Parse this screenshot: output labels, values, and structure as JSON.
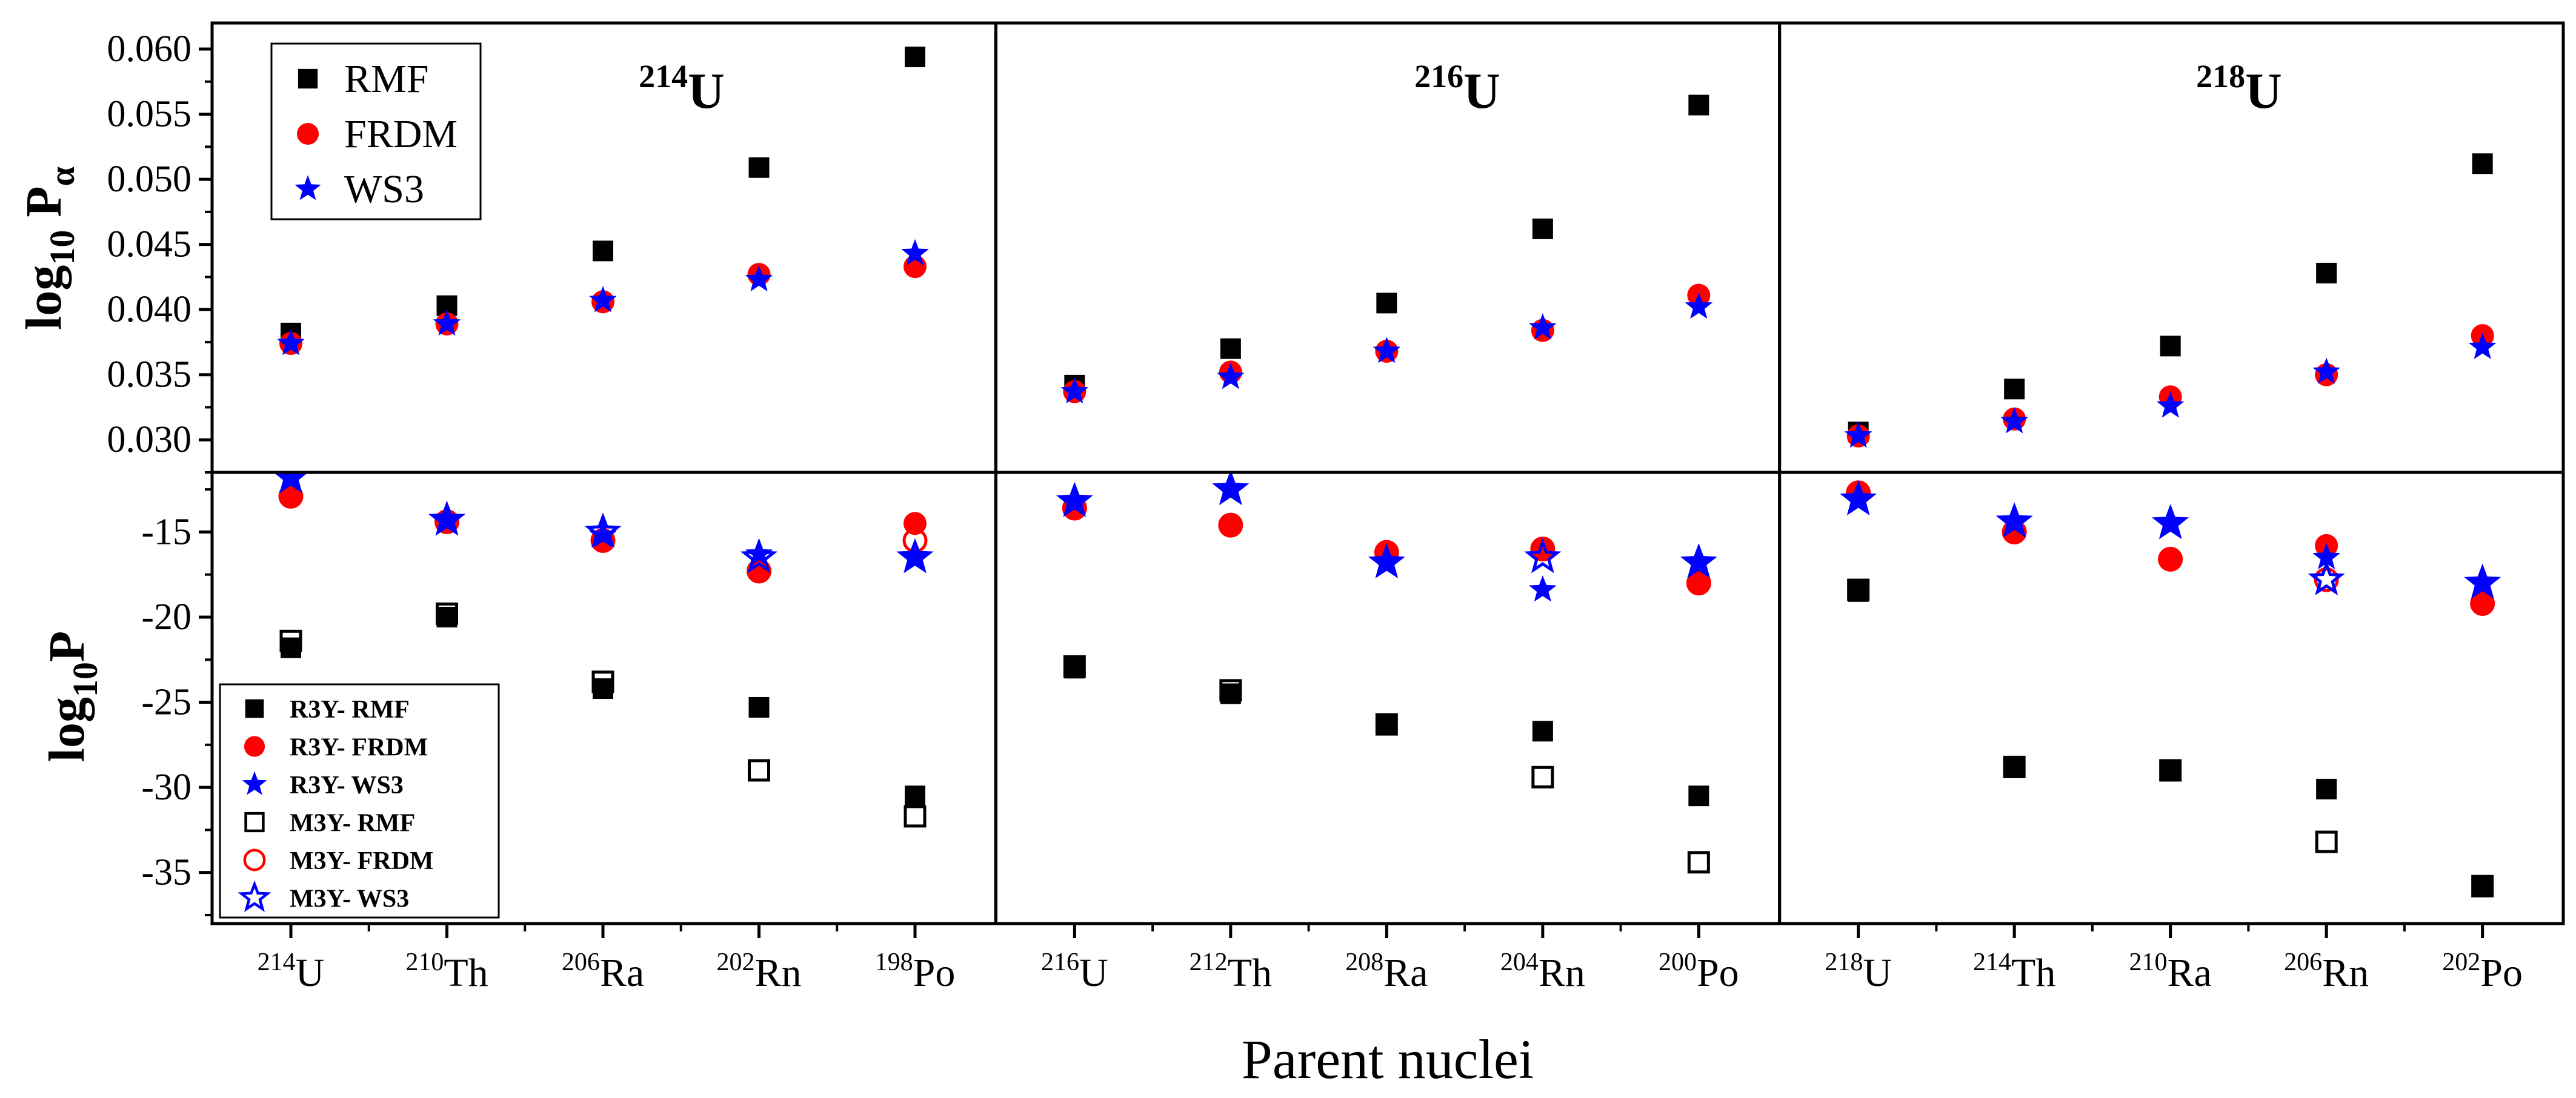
{
  "chart_data": {
    "type": "scatter",
    "x_title": "Parent nuclei",
    "top_ylabel": {
      "base": "log",
      "sub": "10",
      "main": " P",
      "sub2": "α"
    },
    "bottom_ylabel": {
      "base": "log",
      "sub": "10",
      "main": "P"
    },
    "top_yaxis": {
      "min": 0.0275,
      "max": 0.062,
      "ticks": [
        "0.030",
        "0.035",
        "0.040",
        "0.045",
        "0.050",
        "0.055",
        "0.060"
      ]
    },
    "bottom_yaxis": {
      "min": -38,
      "max": -11.5,
      "ticks": [
        "-15",
        "-20",
        "-25",
        "-30",
        "-35"
      ]
    },
    "panels": [
      {
        "title_mass": "214",
        "title_elem": "U",
        "xticks": [
          {
            "mass": "214",
            "elem": "U"
          },
          {
            "mass": "210",
            "elem": "Th"
          },
          {
            "mass": "206",
            "elem": "Ra"
          },
          {
            "mass": "202",
            "elem": "Rn"
          },
          {
            "mass": "198",
            "elem": "Po"
          }
        ],
        "top": {
          "RMF": [
            0.0382,
            0.0403,
            0.0445,
            0.0509,
            0.0594
          ],
          "FRDM": [
            0.0374,
            0.0389,
            0.0406,
            0.0427,
            0.0433
          ],
          "WS3": [
            0.0374,
            0.0389,
            0.0407,
            0.0423,
            0.0443
          ]
        },
        "bottom": {
          "R3Y_RMF": [
            -21.8,
            -20.0,
            -24.2,
            -25.3,
            -30.5
          ],
          "R3Y_FRDM": [
            -12.9,
            -14.4,
            -15.5,
            -17.3,
            -14.5
          ],
          "R3Y_WS3": [
            -11.8,
            -14.3,
            -15.2,
            -16.3,
            -16.5
          ],
          "M3Y_RMF": [
            -21.4,
            -19.8,
            -23.8,
            -29.0,
            -31.7
          ],
          "M3Y_FRDM": [
            -12.9,
            -14.4,
            -15.5,
            -17.3,
            -15.5
          ],
          "M3Y_WS3": [
            -11.8,
            -14.3,
            -15.0,
            -16.5,
            -16.5
          ]
        }
      },
      {
        "title_mass": "216",
        "title_elem": "U",
        "xticks": [
          {
            "mass": "216",
            "elem": "U"
          },
          {
            "mass": "212",
            "elem": "Th"
          },
          {
            "mass": "208",
            "elem": "Ra"
          },
          {
            "mass": "204",
            "elem": "Rn"
          },
          {
            "mass": "200",
            "elem": "Po"
          }
        ],
        "top": {
          "RMF": [
            0.0342,
            0.037,
            0.0405,
            0.0462,
            0.0557
          ],
          "FRDM": [
            0.0337,
            0.0352,
            0.0368,
            0.0384,
            0.0411
          ],
          "WS3": [
            0.0337,
            0.0348,
            0.0368,
            0.0386,
            0.0402
          ]
        },
        "bottom": {
          "R3Y_RMF": [
            -23.0,
            -24.5,
            -26.3,
            -26.7,
            -30.5
          ],
          "R3Y_FRDM": [
            -13.6,
            -14.6,
            -16.2,
            -16.0,
            -18.0
          ],
          "R3Y_WS3": [
            -13.2,
            -12.5,
            -16.8,
            -18.4,
            -16.8
          ],
          "M3Y_RMF": [
            -22.9,
            -24.3,
            -26.3,
            -29.4,
            -34.4
          ],
          "M3Y_FRDM": [
            -13.6,
            -14.6,
            -16.2,
            -16.0,
            -18.0
          ],
          "M3Y_WS3": [
            -13.2,
            -12.5,
            -16.8,
            -16.5,
            -16.8
          ]
        }
      },
      {
        "title_mass": "218",
        "title_elem": "U",
        "xticks": [
          {
            "mass": "218",
            "elem": "U"
          },
          {
            "mass": "214",
            "elem": "Th"
          },
          {
            "mass": "210",
            "elem": "Ra"
          },
          {
            "mass": "206",
            "elem": "Rn"
          },
          {
            "mass": "202",
            "elem": "Po"
          }
        ],
        "top": {
          "RMF": [
            0.0306,
            0.0339,
            0.0372,
            0.0428,
            0.0512
          ],
          "FRDM": [
            0.0303,
            0.0316,
            0.0333,
            0.035,
            0.038
          ],
          "WS3": [
            0.0303,
            0.0314,
            0.0326,
            0.0352,
            0.0371
          ]
        },
        "bottom": {
          "R3Y_RMF": [
            -18.5,
            -28.8,
            -29.0,
            -30.1,
            -35.8
          ],
          "R3Y_FRDM": [
            -12.7,
            -15.0,
            -16.6,
            -15.8,
            -19.2
          ],
          "R3Y_WS3": [
            -13.1,
            -14.4,
            -14.5,
            -16.5,
            -18.0
          ],
          "M3Y_RMF": [
            -18.4,
            -28.8,
            -29.0,
            -33.2,
            -35.8
          ],
          "M3Y_FRDM": [
            -12.7,
            -15.0,
            -16.6,
            -17.8,
            -19.2
          ],
          "M3Y_WS3": [
            -13.1,
            -14.4,
            -14.5,
            -17.8,
            -18.0
          ]
        }
      }
    ],
    "top_legend": [
      {
        "key": "RMF",
        "label": "RMF",
        "marker": "square-filled",
        "color": "#000000"
      },
      {
        "key": "FRDM",
        "label": "FRDM",
        "marker": "circle-filled",
        "color": "#ff0000"
      },
      {
        "key": "WS3",
        "label": "WS3",
        "marker": "star-filled",
        "color": "#0000ff"
      }
    ],
    "bottom_legend": [
      {
        "key": "R3Y_RMF",
        "label": "R3Y- RMF",
        "marker": "square-filled",
        "color": "#000000"
      },
      {
        "key": "R3Y_FRDM",
        "label": "R3Y- FRDM",
        "marker": "circle-filled",
        "color": "#ff0000"
      },
      {
        "key": "R3Y_WS3",
        "label": "R3Y- WS3",
        "marker": "star-filled",
        "color": "#0000ff"
      },
      {
        "key": "M3Y_RMF",
        "label": "M3Y- RMF",
        "marker": "square-open",
        "color": "#000000"
      },
      {
        "key": "M3Y_FRDM",
        "label": "M3Y- FRDM",
        "marker": "circle-open",
        "color": "#ff0000"
      },
      {
        "key": "M3Y_WS3",
        "label": "M3Y- WS3",
        "marker": "star-open",
        "color": "#0000ff"
      }
    ],
    "title_color": "#8b0000"
  }
}
